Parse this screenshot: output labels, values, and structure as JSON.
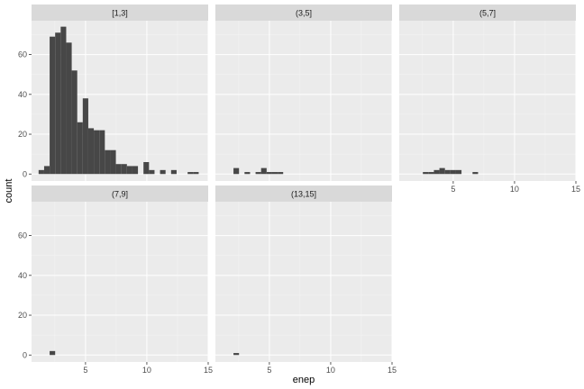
{
  "chart_data": {
    "type": "bar",
    "subtype": "faceted-histogram",
    "xlabel": "enep",
    "ylabel": "count",
    "xlim": [
      0,
      15
    ],
    "ylim": [
      0,
      75
    ],
    "xticks": [
      5,
      10,
      15
    ],
    "yticks": [
      0,
      20,
      40,
      60
    ],
    "bin_width": 0.45,
    "grid": true,
    "colors": {
      "bar": "#474747",
      "panel_bg": "#ebebeb",
      "strip_bg": "#d9d9d9",
      "grid": "#ffffff"
    },
    "facets": [
      {
        "label": "[1,3]",
        "bins": [
          {
            "x": 1.4,
            "y": 2
          },
          {
            "x": 1.85,
            "y": 4
          },
          {
            "x": 2.3,
            "y": 69
          },
          {
            "x": 2.75,
            "y": 71
          },
          {
            "x": 3.2,
            "y": 74
          },
          {
            "x": 3.65,
            "y": 66
          },
          {
            "x": 4.1,
            "y": 52
          },
          {
            "x": 4.55,
            "y": 26
          },
          {
            "x": 5.0,
            "y": 38
          },
          {
            "x": 5.45,
            "y": 23
          },
          {
            "x": 5.9,
            "y": 22
          },
          {
            "x": 6.35,
            "y": 22
          },
          {
            "x": 6.8,
            "y": 12
          },
          {
            "x": 7.25,
            "y": 12
          },
          {
            "x": 7.7,
            "y": 5
          },
          {
            "x": 8.15,
            "y": 5
          },
          {
            "x": 8.6,
            "y": 4
          },
          {
            "x": 9.05,
            "y": 4
          },
          {
            "x": 9.95,
            "y": 6
          },
          {
            "x": 10.4,
            "y": 2
          },
          {
            "x": 11.3,
            "y": 2
          },
          {
            "x": 12.2,
            "y": 2
          },
          {
            "x": 13.55,
            "y": 1
          },
          {
            "x": 14.0,
            "y": 1
          }
        ]
      },
      {
        "label": "(3,5]",
        "bins": [
          {
            "x": 2.3,
            "y": 3
          },
          {
            "x": 3.2,
            "y": 1
          },
          {
            "x": 4.1,
            "y": 1
          },
          {
            "x": 4.55,
            "y": 3
          },
          {
            "x": 5.0,
            "y": 1
          },
          {
            "x": 5.45,
            "y": 1
          },
          {
            "x": 5.9,
            "y": 1
          }
        ]
      },
      {
        "label": "(5,7]",
        "bins": [
          {
            "x": 2.75,
            "y": 1
          },
          {
            "x": 3.2,
            "y": 1
          },
          {
            "x": 3.65,
            "y": 2
          },
          {
            "x": 4.1,
            "y": 3
          },
          {
            "x": 4.55,
            "y": 2
          },
          {
            "x": 5.0,
            "y": 2
          },
          {
            "x": 5.45,
            "y": 2
          },
          {
            "x": 6.8,
            "y": 1
          }
        ]
      },
      {
        "label": "(7,9]",
        "bins": [
          {
            "x": 2.3,
            "y": 2
          }
        ]
      },
      {
        "label": "(13,15]",
        "bins": [
          {
            "x": 2.3,
            "y": 1
          }
        ]
      }
    ]
  }
}
